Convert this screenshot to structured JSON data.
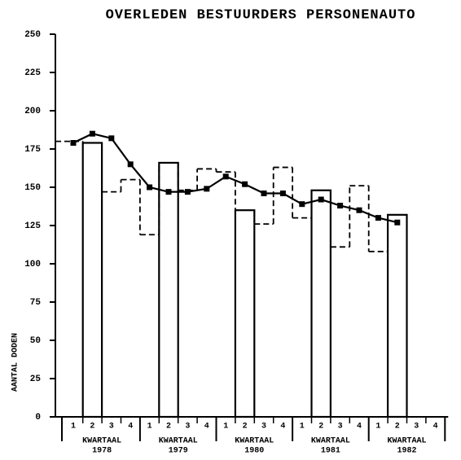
{
  "chart_data": {
    "type": "bar",
    "title": "OVERLEDEN BESTUURDERS PERSONENAUTO",
    "ylabel": "AANTAL DODEN",
    "categories": [
      "1",
      "2",
      "3",
      "4",
      "1",
      "2",
      "3",
      "4",
      "1",
      "2",
      "3",
      "4",
      "1",
      "2",
      "3",
      "4",
      "1",
      "2",
      "3",
      "4"
    ],
    "groups": [
      {
        "label": "KWARTAAL",
        "year": "1978"
      },
      {
        "label": "KWARTAAL",
        "year": "1979"
      },
      {
        "label": "KWARTAAL",
        "year": "1980"
      },
      {
        "label": "KWARTAAL",
        "year": "1981"
      },
      {
        "label": "KWARTAAL",
        "year": "1982"
      }
    ],
    "series": [
      {
        "style": "bar",
        "color": "#000000",
        "values": [
          null,
          179,
          null,
          null,
          null,
          166,
          null,
          null,
          null,
          135,
          null,
          null,
          null,
          148,
          null,
          null,
          null,
          132,
          null,
          null
        ]
      },
      {
        "style": "dashed-step",
        "color": "#000000",
        "values": [
          180,
          null,
          147,
          155,
          119,
          null,
          148,
          162,
          160,
          null,
          126,
          163,
          130,
          null,
          111,
          151,
          108,
          null,
          null,
          null
        ]
      },
      {
        "style": "line-markers",
        "color": "#000000",
        "values": [
          179,
          185,
          182,
          165,
          150,
          147,
          147,
          149,
          157,
          152,
          146,
          146,
          139,
          142,
          138,
          135,
          130,
          127,
          null,
          null
        ]
      }
    ],
    "ylim": [
      0,
      250
    ],
    "yticks": [
      0,
      25,
      50,
      75,
      100,
      125,
      150,
      175,
      200,
      225,
      250
    ]
  }
}
